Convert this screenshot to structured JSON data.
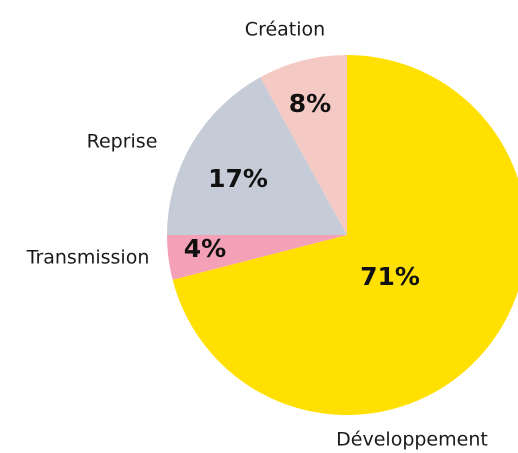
{
  "chart_data": {
    "type": "pie",
    "categories": [
      "Développement",
      "Transmission",
      "Reprise",
      "Création"
    ],
    "values": [
      71,
      4,
      17,
      8
    ],
    "value_labels": [
      "71%",
      "4%",
      "17%",
      "8%"
    ],
    "colors": [
      "#ffe000",
      "#f4a0b6",
      "#c5ccd7",
      "#f5c9c4"
    ]
  }
}
